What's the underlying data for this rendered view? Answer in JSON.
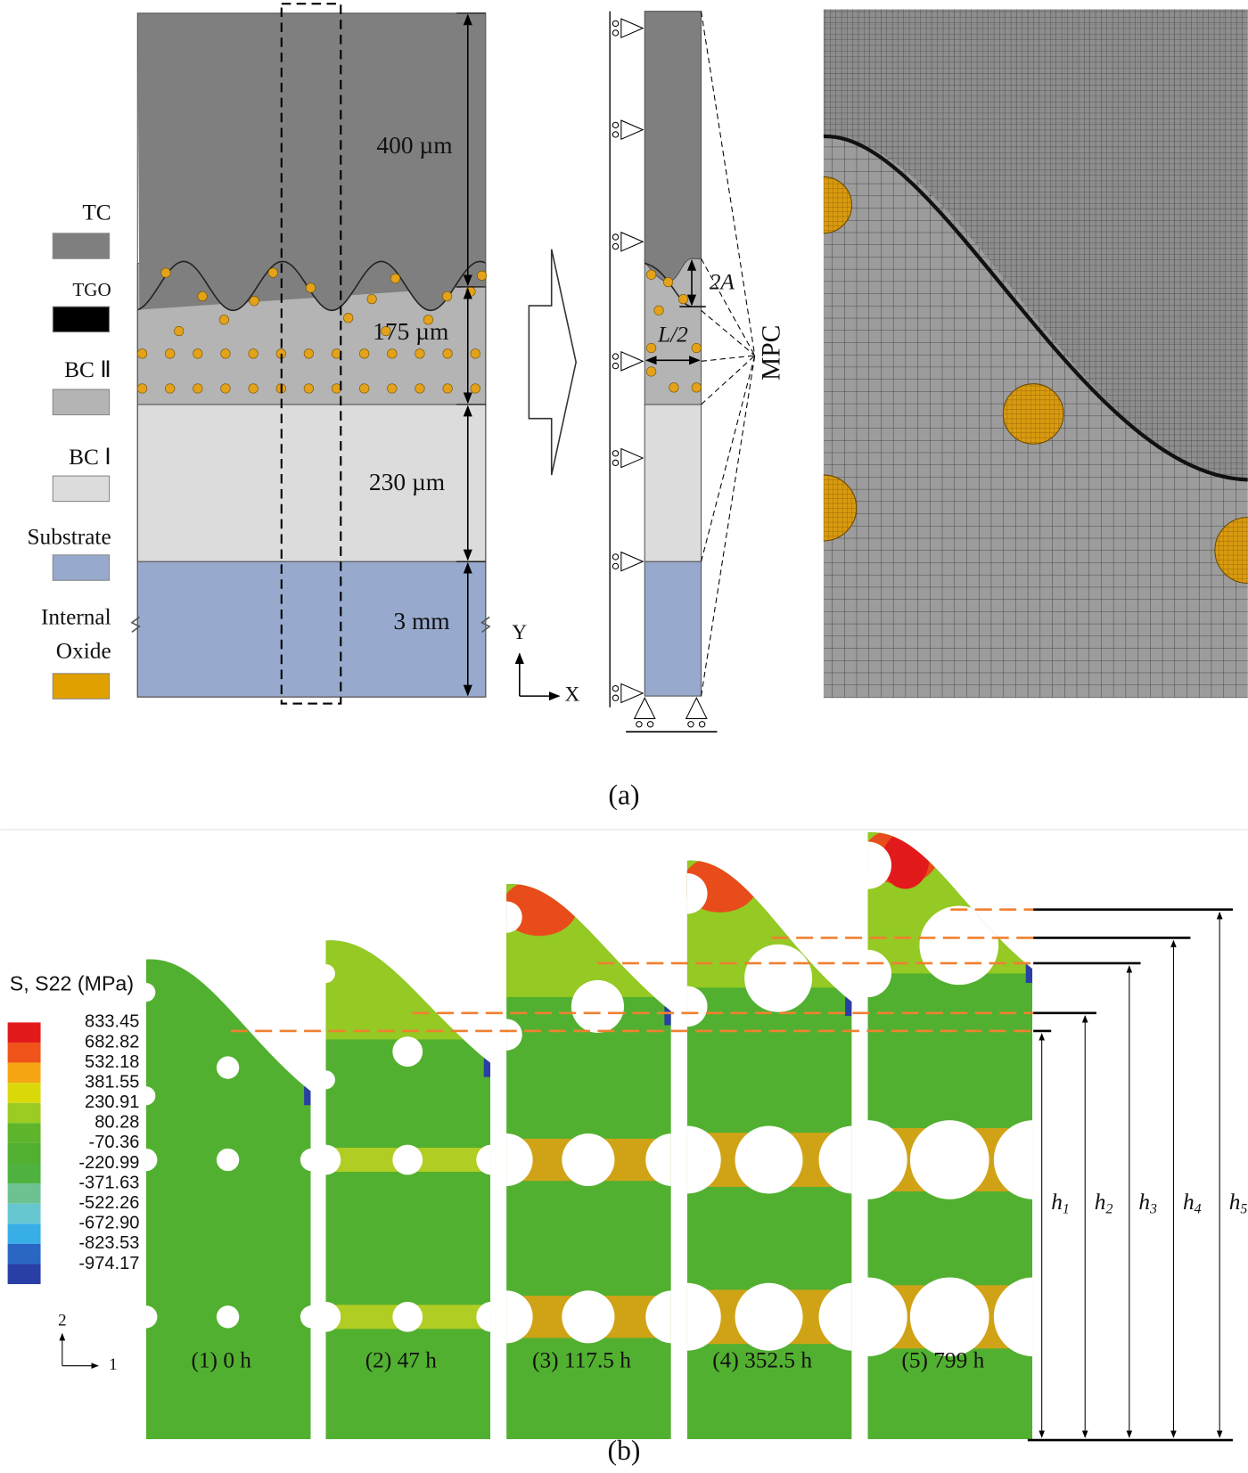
{
  "panel_a": {
    "legend": [
      "TC",
      "TGO",
      "BC Ⅱ",
      "BC Ⅰ",
      "Substrate",
      [
        "Internal",
        "Oxide"
      ]
    ],
    "dimensions": [
      "400 µm",
      "175 µm",
      "230 µm",
      "3 mm"
    ],
    "labels": {
      "amplitude": "2A",
      "half_length": "L/2",
      "mpc": "MPC",
      "y_axis": "Y",
      "x_axis": "X"
    },
    "caption": "(a)"
  },
  "panel_b": {
    "legend_title": "S, S22 (MPa)",
    "legend_values": [
      "833.45",
      "682.82",
      "532.18",
      "381.55",
      "230.91",
      "80.28",
      "-70.36",
      "-220.99",
      "-371.63",
      "-522.26",
      "-672.90",
      "-823.53",
      "-974.17"
    ],
    "axes": [
      "2",
      "1"
    ],
    "stages": [
      "(1)  0 h",
      "(2)  47 h",
      "(3)   117.5 h",
      "(4)   352.5 h",
      "(5)   799 h"
    ],
    "heights": [
      {
        "letter": "h",
        "sub": "1"
      },
      {
        "letter": "h",
        "sub": "2"
      },
      {
        "letter": "h",
        "sub": "3"
      },
      {
        "letter": "h",
        "sub": "4"
      },
      {
        "letter": "h",
        "sub": "5"
      }
    ],
    "caption": "(b)"
  }
}
